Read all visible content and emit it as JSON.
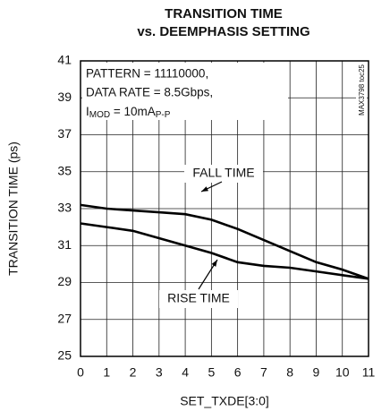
{
  "chart_data": {
    "type": "line",
    "title": [
      "TRANSITION TIME",
      "vs. DEEMPHASIS SETTING"
    ],
    "x_label": "SET_TXDE[3:0]",
    "y_label": "TRANSITION TIME (ps)",
    "conditions": [
      "PATTERN = 11110000,",
      "DATA RATE = 8.5Gbps,"
    ],
    "current_label": {
      "base": "I",
      "sub": "MOD",
      "text": " = 10mA",
      "sub2": "P-P"
    },
    "figure_id": "MAX3798 toc25",
    "x": [
      0,
      1,
      2,
      3,
      4,
      5,
      6,
      7,
      8,
      9,
      10,
      11
    ],
    "series": [
      {
        "name": "FALL TIME",
        "color": "#000000",
        "values": [
          33.2,
          33.0,
          32.9,
          32.8,
          32.7,
          32.4,
          31.9,
          31.3,
          30.7,
          30.1,
          29.7,
          29.2
        ]
      },
      {
        "name": "RISE TIME",
        "color": "#000000",
        "values": [
          32.2,
          32.0,
          31.8,
          31.4,
          31.0,
          30.6,
          30.1,
          29.9,
          29.8,
          29.6,
          29.4,
          29.2
        ]
      }
    ],
    "xlim": [
      0,
      11
    ],
    "xticks": [
      0,
      1,
      2,
      3,
      4,
      5,
      6,
      7,
      8,
      9,
      10,
      11
    ],
    "ylim": [
      25,
      41
    ],
    "yticks": [
      25,
      27,
      29,
      31,
      33,
      35,
      37,
      39,
      41
    ],
    "grid": true
  }
}
